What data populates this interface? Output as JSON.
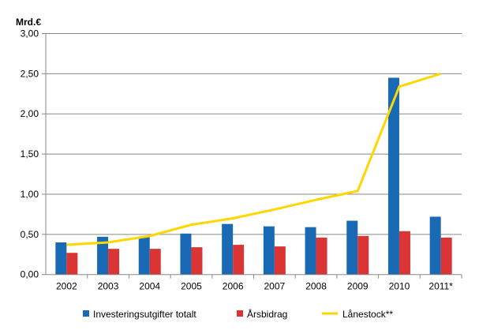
{
  "chart_data": {
    "type": "bar",
    "ylabel": "Mrd.€",
    "ylim": [
      0,
      3
    ],
    "yticks": [
      "0,00",
      "0,50",
      "1,00",
      "1,50",
      "2,00",
      "2,50",
      "3,00"
    ],
    "grid": true,
    "legend_placement": "bottom",
    "categories": [
      "2002",
      "2003",
      "2004",
      "2005",
      "2006",
      "2007",
      "2008",
      "2009",
      "2010",
      "2011*"
    ],
    "series": [
      {
        "name": "Investeringsutgifter totalt",
        "kind": "bar",
        "color": "#1a69b4",
        "values": [
          0.4,
          0.47,
          0.47,
          0.51,
          0.63,
          0.6,
          0.59,
          0.67,
          2.45,
          0.72
        ]
      },
      {
        "name": "Årsbidrag",
        "kind": "bar",
        "color": "#db3434",
        "values": [
          0.27,
          0.32,
          0.32,
          0.34,
          0.37,
          0.35,
          0.46,
          0.48,
          0.54,
          0.46
        ]
      },
      {
        "name": "Lånestock**",
        "kind": "line",
        "color": "#ffd700",
        "values": [
          0.37,
          0.4,
          0.48,
          0.62,
          0.7,
          0.81,
          0.93,
          1.04,
          2.34,
          2.5
        ]
      }
    ]
  }
}
